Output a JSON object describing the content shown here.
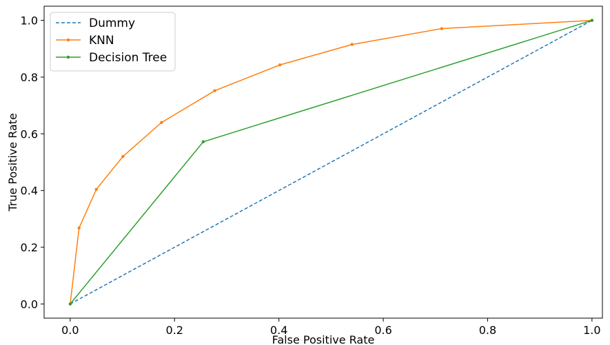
{
  "chart_data": {
    "type": "line",
    "title": "",
    "xlabel": "False Positive Rate",
    "ylabel": "True Positive Rate",
    "xlim": [
      -0.05,
      1.02
    ],
    "ylim": [
      -0.05,
      1.05
    ],
    "x_ticks": [
      0.0,
      0.2,
      0.4,
      0.6,
      0.8,
      1.0
    ],
    "y_ticks": [
      0.0,
      0.2,
      0.4,
      0.6,
      0.8,
      1.0
    ],
    "x_tick_labels": [
      "0.0",
      "0.2",
      "0.4",
      "0.6",
      "0.8",
      "1.0"
    ],
    "y_tick_labels": [
      "0.0",
      "0.2",
      "0.4",
      "0.6",
      "0.8",
      "1.0"
    ],
    "grid": false,
    "legend_position": "top-left",
    "series": [
      {
        "name": "Dummy",
        "color": "#1f77b4",
        "style": "dashed",
        "marker": "none",
        "points": [
          [
            0.0,
            0.0
          ],
          [
            1.0,
            1.0
          ]
        ]
      },
      {
        "name": "KNN",
        "color": "#ff7f0e",
        "style": "solid",
        "marker": "dot",
        "points": [
          [
            0.0,
            0.0
          ],
          [
            0.017,
            0.268
          ],
          [
            0.05,
            0.404
          ],
          [
            0.101,
            0.52
          ],
          [
            0.175,
            0.64
          ],
          [
            0.277,
            0.752
          ],
          [
            0.402,
            0.843
          ],
          [
            0.54,
            0.915
          ],
          [
            0.712,
            0.971
          ],
          [
            1.0,
            1.0
          ]
        ]
      },
      {
        "name": "Decision Tree",
        "color": "#2ca02c",
        "style": "solid",
        "marker": "dot",
        "points": [
          [
            0.0,
            0.0
          ],
          [
            0.255,
            0.572
          ],
          [
            1.0,
            1.0
          ]
        ]
      }
    ]
  }
}
